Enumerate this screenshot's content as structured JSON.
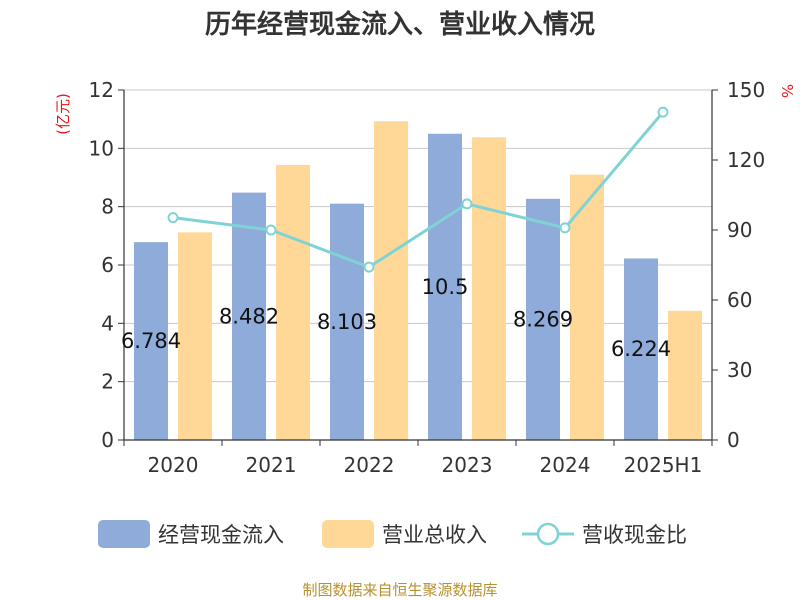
{
  "chart_data": {
    "type": "bar",
    "title": "历年经营现金流入、营业收入情况",
    "categories": [
      "2020",
      "2021",
      "2022",
      "2023",
      "2024",
      "2025H1"
    ],
    "left_axis": {
      "unit": "(亿元)",
      "ylim": [
        0,
        12
      ],
      "ticks": [
        0,
        2,
        4,
        6,
        8,
        10,
        12
      ]
    },
    "right_axis": {
      "unit": "%",
      "ylim": [
        0,
        150
      ],
      "ticks": [
        0,
        30,
        60,
        90,
        120,
        150
      ]
    },
    "series": [
      {
        "name": "经营现金流入",
        "type": "bar",
        "axis": "left",
        "color": "#8eabd9",
        "values": [
          6.784,
          8.482,
          8.103,
          10.5,
          8.269,
          6.224
        ],
        "labels": [
          "6.784",
          "8.482",
          "8.103",
          "10.5",
          "8.269",
          "6.224"
        ]
      },
      {
        "name": "营业总收入",
        "type": "bar",
        "axis": "left",
        "color": "#ffd898",
        "values": [
          7.12,
          9.43,
          10.93,
          10.38,
          9.1,
          4.43
        ]
      },
      {
        "name": "营收现金比",
        "type": "line",
        "axis": "right",
        "color": "#7fd3d5",
        "values": [
          95.3,
          90.0,
          74.1,
          101.2,
          90.9,
          140.5
        ]
      }
    ],
    "grid": true,
    "legend": "bottom"
  },
  "source": "制图数据来自恒生聚源数据库"
}
